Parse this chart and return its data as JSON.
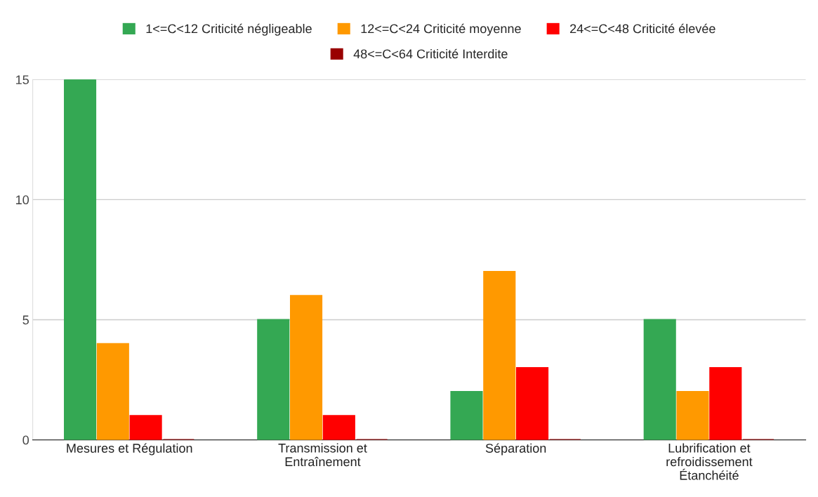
{
  "chart_data": {
    "type": "bar",
    "categories": [
      "Mesures et Régulation",
      "Transmission et\nEntraînement",
      "Séparation",
      "Lubrification et\nrefroidissement\nÉtanchéité"
    ],
    "series": [
      {
        "name": "1<=C<12 Criticité négligeable",
        "color": "#34a853",
        "values": [
          15,
          5,
          2,
          5
        ]
      },
      {
        "name": "12<=C<24 Criticité moyenne",
        "color": "#ff9900",
        "values": [
          4,
          6,
          7,
          2
        ]
      },
      {
        "name": "24<=C<48 Criticité élevée",
        "color": "#ff0000",
        "values": [
          1,
          1,
          3,
          3
        ]
      },
      {
        "name": "48<=C<64 Criticité Interdite",
        "color": "#990000",
        "values": [
          0,
          0,
          0,
          0
        ]
      }
    ],
    "ylim": [
      0,
      15
    ],
    "yticks": [
      0,
      5,
      10,
      15
    ],
    "grid": "y",
    "legend": "top"
  }
}
